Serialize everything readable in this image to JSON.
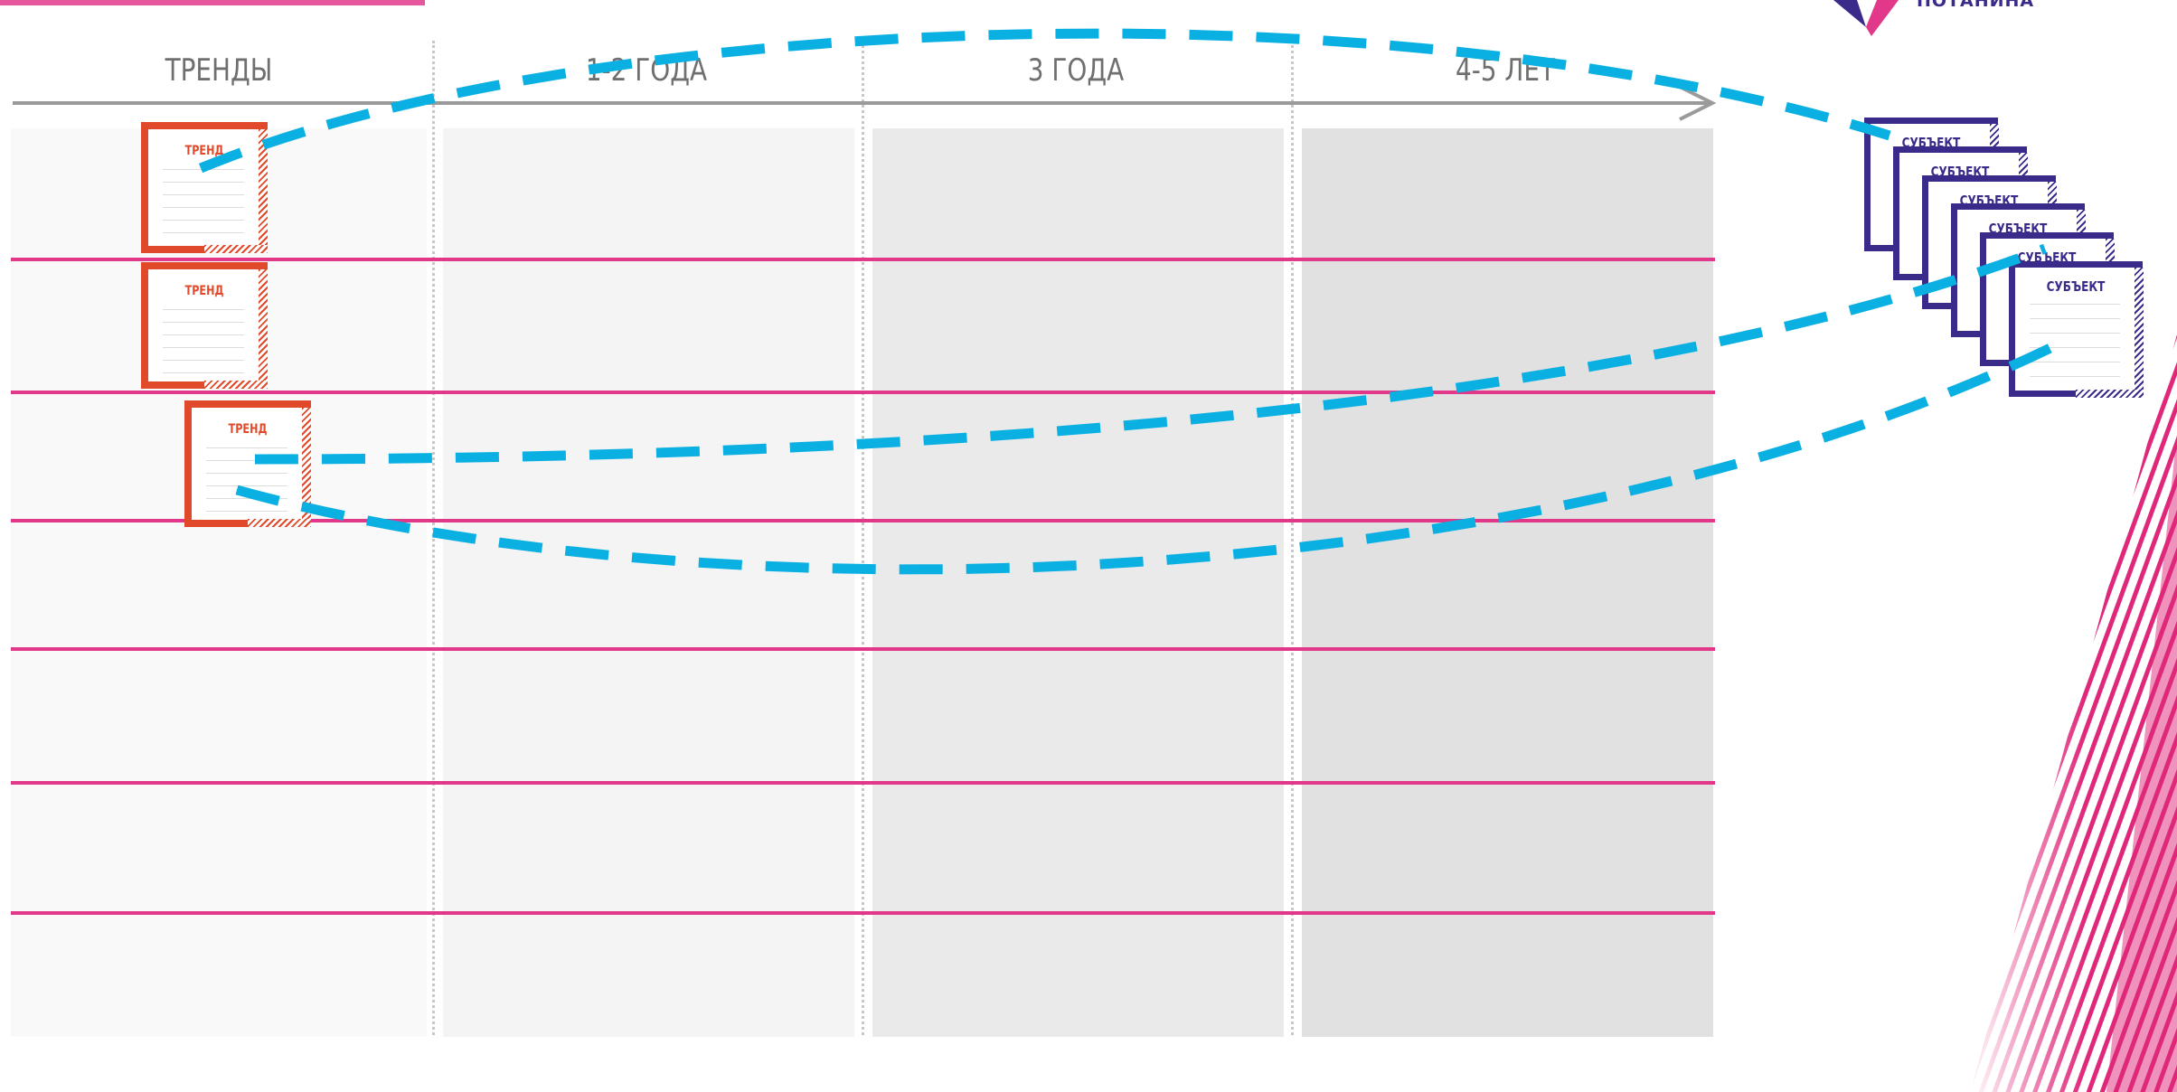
{
  "logo": {
    "text": "ПОТАНИНА"
  },
  "columns": [
    {
      "label": "ТРЕНДЫ"
    },
    {
      "label": "1-2 ГОДА"
    },
    {
      "label": "3 ГОДА"
    },
    {
      "label": "4-5 ЛЕТ"
    }
  ],
  "trend_cards": [
    {
      "label": "ТРЕНД"
    },
    {
      "label": "ТРЕНД"
    },
    {
      "label": "ТРЕНД"
    }
  ],
  "subject_cards": [
    {
      "label": "СУБЪЕКТ"
    },
    {
      "label": "СУБЪЕКТ"
    },
    {
      "label": "СУБЪЕКТ"
    },
    {
      "label": "СУБЪЕКТ"
    },
    {
      "label": "СУБЪЕКТ"
    },
    {
      "label": "СУБЪЕКТ"
    }
  ],
  "colors": {
    "row_lines": "#e2388a",
    "trend": "#e04a2a",
    "subject": "#3a2b8a",
    "connectors": "#0bb0e3",
    "brand_stripes": "#e0287a"
  }
}
